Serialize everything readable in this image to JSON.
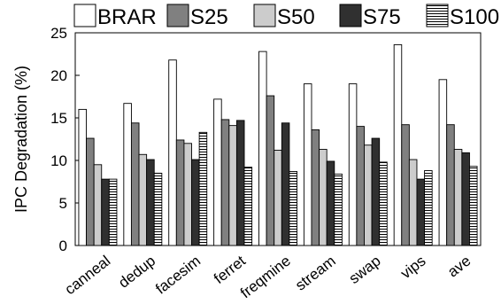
{
  "chart_data": {
    "type": "bar",
    "ylabel": "IPC Degradation (%)",
    "xlabel": "",
    "ylim": [
      0,
      25
    ],
    "yticks": [
      "0",
      "5",
      "10",
      "15",
      "20",
      "25"
    ],
    "grid": false,
    "legend_position": "top",
    "categories": [
      "canneal",
      "dedup",
      "facesim",
      "ferret",
      "freqmine",
      "stream",
      "swap",
      "vips",
      "ave"
    ],
    "series": [
      {
        "name": "BRAR",
        "color": "#ffffff",
        "pattern": "none",
        "values": [
          16.0,
          16.7,
          21.8,
          17.2,
          22.8,
          19.0,
          19.0,
          23.6,
          19.5
        ]
      },
      {
        "name": "S25",
        "color": "#808080",
        "pattern": "none",
        "values": [
          12.6,
          14.4,
          12.4,
          14.8,
          17.6,
          13.6,
          14.0,
          14.2,
          14.2
        ]
      },
      {
        "name": "S50",
        "color": "#cccccc",
        "pattern": "none",
        "values": [
          9.5,
          10.7,
          12.0,
          14.1,
          11.2,
          11.3,
          11.8,
          10.1,
          11.3
        ]
      },
      {
        "name": "S75",
        "color": "#303030",
        "pattern": "none",
        "values": [
          7.8,
          10.1,
          10.1,
          14.7,
          14.4,
          9.9,
          12.6,
          7.8,
          10.9
        ]
      },
      {
        "name": "S100",
        "color": "#ffffff",
        "pattern": "horizontal-stripes",
        "values": [
          7.8,
          8.5,
          13.3,
          9.2,
          8.7,
          8.4,
          9.8,
          8.8,
          9.3
        ]
      }
    ]
  }
}
